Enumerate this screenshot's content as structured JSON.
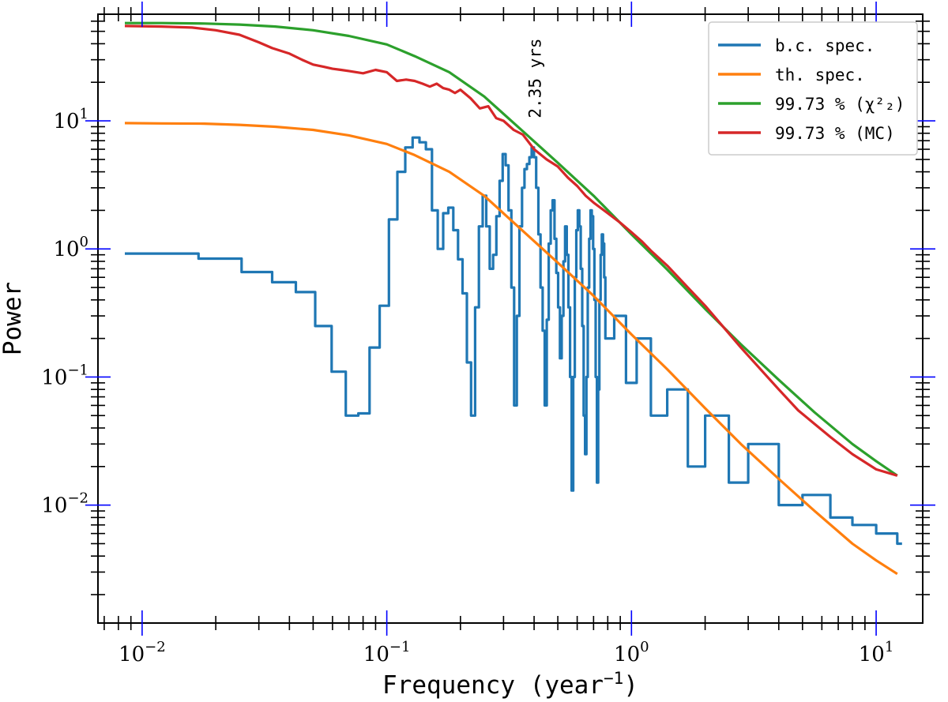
{
  "chart_data": {
    "type": "line",
    "title": "",
    "xlabel": "Frequency (year",
    "xlabel_exponent": "−1",
    "xlabel_close": ")",
    "ylabel": "Power",
    "xscale": "log",
    "yscale": "log",
    "xlim": [
      0.0066,
      15.5
    ],
    "ylim": [
      0.0012,
      68
    ],
    "x_ticks": [
      {
        "value": 0.01,
        "base": "10",
        "exp": "−2"
      },
      {
        "value": 0.1,
        "base": "10",
        "exp": "−1"
      },
      {
        "value": 1,
        "base": "10",
        "exp": "0"
      },
      {
        "value": 10,
        "base": "10",
        "exp": "1"
      }
    ],
    "y_ticks": [
      {
        "value": 0.01,
        "base": "10",
        "exp": "−2"
      },
      {
        "value": 0.1,
        "base": "10",
        "exp": "−1"
      },
      {
        "value": 1,
        "base": "10",
        "exp": "0"
      },
      {
        "value": 10,
        "base": "10",
        "exp": "1"
      }
    ],
    "grid": false,
    "legend_position": "top-right",
    "annotation": {
      "text": "2.35 yrs",
      "x": 0.426,
      "y": 10.5
    },
    "series": [
      {
        "name": "b.c. spec.",
        "color": "#1f77b4",
        "style": "step",
        "x": [
          0.0085,
          0.017,
          0.0255,
          0.034,
          0.0425,
          0.051,
          0.0595,
          0.068,
          0.0765,
          0.085,
          0.0935,
          0.102,
          0.1105,
          0.119,
          0.1275,
          0.136,
          0.1445,
          0.153,
          0.1615,
          0.17,
          0.1785,
          0.187,
          0.1955,
          0.204,
          0.2125,
          0.221,
          0.2295,
          0.238,
          0.2465,
          0.255,
          0.2635,
          0.272,
          0.2805,
          0.289,
          0.2975,
          0.306,
          0.3145,
          0.323,
          0.3315,
          0.34,
          0.3485,
          0.357,
          0.3655,
          0.374,
          0.3825,
          0.391,
          0.3995,
          0.408,
          0.4165,
          0.425,
          0.4335,
          0.442,
          0.4505,
          0.459,
          0.4675,
          0.476,
          0.4845,
          0.493,
          0.5015,
          0.51,
          0.5185,
          0.527,
          0.5355,
          0.544,
          0.5525,
          0.561,
          0.5695,
          0.578,
          0.5865,
          0.595,
          0.6035,
          0.612,
          0.6205,
          0.629,
          0.6375,
          0.646,
          0.6545,
          0.663,
          0.6715,
          0.68,
          0.6885,
          0.697,
          0.7055,
          0.714,
          0.7225,
          0.731,
          0.7395,
          0.748,
          0.7565,
          0.765,
          0.7735,
          0.782,
          0.85,
          0.95,
          1.05,
          1.2,
          1.4,
          1.7,
          2.0,
          2.5,
          3.0,
          4.0,
          5.0,
          6.5,
          8.0,
          10.0,
          12.2
        ],
        "values": [
          0.92,
          0.84,
          0.66,
          0.55,
          0.46,
          0.25,
          0.11,
          0.05,
          0.052,
          0.17,
          0.36,
          1.7,
          4.0,
          6.2,
          7.4,
          6.8,
          6.0,
          2.0,
          1.0,
          1.9,
          2.1,
          1.4,
          0.83,
          0.45,
          0.13,
          0.05,
          0.35,
          1.5,
          2.6,
          1.5,
          0.7,
          0.9,
          1.8,
          3.4,
          5.5,
          4.5,
          2.0,
          0.5,
          0.06,
          0.3,
          1.5,
          3.0,
          4.2,
          4.6,
          5.2,
          6.2,
          5.2,
          3.0,
          1.3,
          0.5,
          0.23,
          0.06,
          0.28,
          1.1,
          2.0,
          2.4,
          1.2,
          0.65,
          0.35,
          0.14,
          0.3,
          0.8,
          1.5,
          0.9,
          0.35,
          0.1,
          0.013,
          0.1,
          0.6,
          1.4,
          2.0,
          1.5,
          0.7,
          0.25,
          0.05,
          0.025,
          0.1,
          0.5,
          1.2,
          2.0,
          1.8,
          1.0,
          0.4,
          0.1,
          0.015,
          0.08,
          0.4,
          0.9,
          1.3,
          1.1,
          0.6,
          0.2,
          0.3,
          0.09,
          0.2,
          0.05,
          0.08,
          0.02,
          0.05,
          0.015,
          0.03,
          0.01,
          0.012,
          0.008,
          0.007,
          0.006,
          0.005
        ]
      },
      {
        "name": "th. spec.",
        "color": "#ff7f0e",
        "style": "line",
        "x": [
          0.0085,
          0.012,
          0.018,
          0.025,
          0.035,
          0.05,
          0.07,
          0.1,
          0.13,
          0.18,
          0.25,
          0.35,
          0.5,
          0.7,
          1.0,
          1.4,
          2.0,
          2.8,
          4.0,
          5.6,
          8.0,
          10.0,
          12.2
        ],
        "values": [
          9.6,
          9.55,
          9.5,
          9.3,
          9.0,
          8.5,
          7.7,
          6.6,
          5.4,
          4.0,
          2.6,
          1.45,
          0.78,
          0.43,
          0.215,
          0.115,
          0.057,
          0.03,
          0.016,
          0.009,
          0.005,
          0.0037,
          0.0029
        ]
      },
      {
        "name": "99.73 % (χ²₂)",
        "color": "#2ca02c",
        "style": "line",
        "x": [
          0.0085,
          0.012,
          0.018,
          0.025,
          0.035,
          0.05,
          0.07,
          0.1,
          0.13,
          0.18,
          0.25,
          0.35,
          0.5,
          0.7,
          1.0,
          1.4,
          2.0,
          2.8,
          4.0,
          5.6,
          8.0,
          10.0,
          12.2
        ],
        "values": [
          58,
          58,
          57.5,
          56.5,
          54.5,
          51,
          46,
          39.5,
          32,
          24,
          15.5,
          8.7,
          4.7,
          2.6,
          1.3,
          0.69,
          0.34,
          0.18,
          0.095,
          0.053,
          0.03,
          0.022,
          0.017
        ]
      },
      {
        "name": "99.73 % (MC)",
        "color": "#d62728",
        "style": "line",
        "x": [
          0.0085,
          0.012,
          0.016,
          0.02,
          0.025,
          0.03,
          0.034,
          0.04,
          0.045,
          0.05,
          0.055,
          0.06,
          0.065,
          0.07,
          0.075,
          0.08,
          0.09,
          0.1,
          0.11,
          0.12,
          0.13,
          0.14,
          0.15,
          0.16,
          0.17,
          0.18,
          0.19,
          0.2,
          0.22,
          0.24,
          0.26,
          0.28,
          0.3,
          0.33,
          0.36,
          0.4,
          0.45,
          0.5,
          0.55,
          0.6,
          0.65,
          0.7,
          0.8,
          0.9,
          1.0,
          1.1,
          1.2,
          1.4,
          1.7,
          2.0,
          2.4,
          2.8,
          3.3,
          4.0,
          4.8,
          5.6,
          6.5,
          8.0,
          10.0,
          12.2
        ],
        "values": [
          55,
          54.5,
          53.5,
          51,
          47,
          41,
          37,
          33.5,
          30,
          27.5,
          26.5,
          25.5,
          25,
          24.5,
          24,
          23.5,
          25,
          24,
          20.5,
          21,
          20.5,
          19.5,
          18.5,
          19.5,
          18,
          17.5,
          16.5,
          17.5,
          15,
          12.5,
          13,
          10.5,
          10,
          8.5,
          7.8,
          6.0,
          5.0,
          4.4,
          3.6,
          3.1,
          2.6,
          2.3,
          1.9,
          1.6,
          1.35,
          1.15,
          0.97,
          0.74,
          0.5,
          0.36,
          0.24,
          0.17,
          0.12,
          0.08,
          0.055,
          0.043,
          0.034,
          0.025,
          0.019,
          0.017
        ]
      }
    ]
  }
}
